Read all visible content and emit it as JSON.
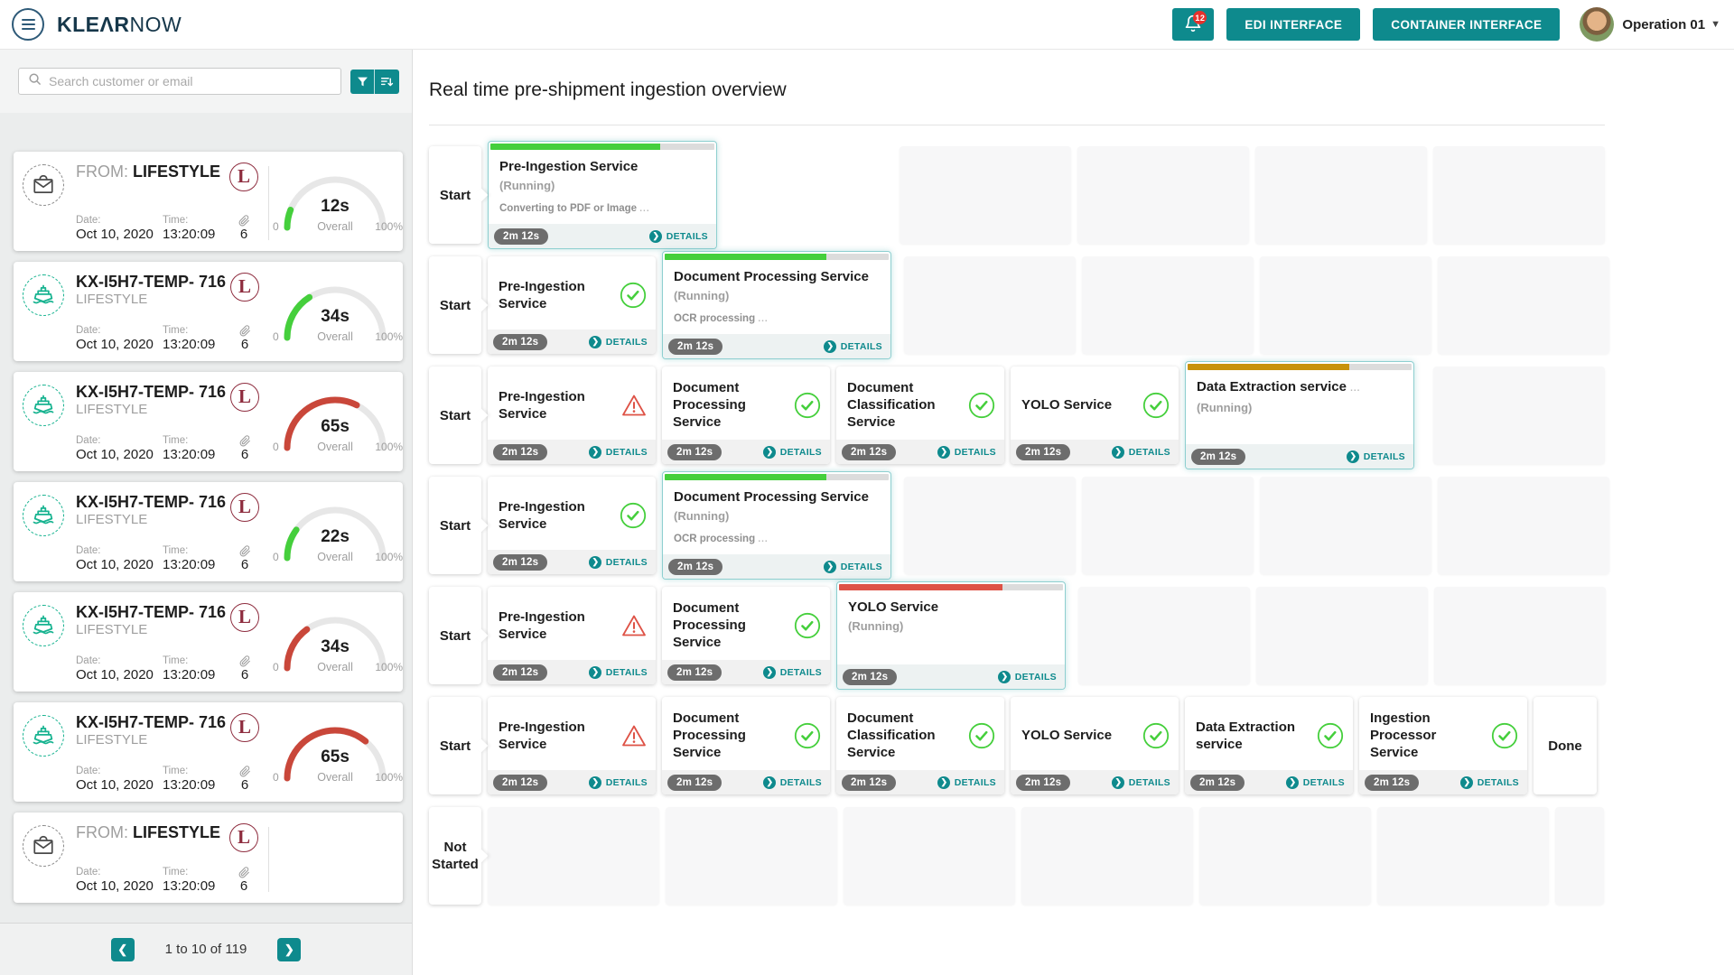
{
  "header": {
    "logo_bold": "KLEΛR",
    "logo_light": "NOW",
    "notification_count": "12",
    "edi_button": "EDI INTERFACE",
    "container_button": "CONTAINER INTERFACE",
    "user_name": "Operation 01"
  },
  "colors": {
    "teal_accent": "#0e8a8d",
    "success_green": "#45cf3c",
    "warning_red": "#de5246",
    "running_yellow": "#c8920b",
    "badge_maroon": "#8e2c3e"
  },
  "sidebar": {
    "search_placeholder": "Search customer or email",
    "pagination": {
      "prev": "❮",
      "label": "1 to 10 of 119",
      "next": "❯"
    },
    "shipments": [
      {
        "icon": "envelope",
        "title_prefix": "FROM:",
        "title": "LIFESTYLE",
        "subtitle": "",
        "badge": "L",
        "date_label": "Date:",
        "date": "Oct 10, 2020",
        "time_label": "Time:",
        "time": "13:20:09",
        "attachment_count": "6",
        "gauge": {
          "value": "12s",
          "label": "Overall",
          "min": "0",
          "max": "100%",
          "percent": 12,
          "color": "#45cf3c"
        }
      },
      {
        "icon": "ship",
        "title_prefix": "",
        "title": "KX-I5H7-TEMP- 716",
        "subtitle": "LIFESTYLE",
        "badge": "L",
        "date_label": "Date:",
        "date": "Oct 10, 2020",
        "time_label": "Time:",
        "time": "13:20:09",
        "attachment_count": "6",
        "gauge": {
          "value": "34s",
          "label": "Overall",
          "min": "0",
          "max": "100%",
          "percent": 32,
          "color": "#45cf3c"
        }
      },
      {
        "icon": "ship",
        "title_prefix": "",
        "title": "KX-I5H7-TEMP- 716",
        "subtitle": "LIFESTYLE",
        "badge": "L",
        "date_label": "Date:",
        "date": "Oct 10, 2020",
        "time_label": "Time:",
        "time": "13:20:09",
        "attachment_count": "6",
        "gauge": {
          "value": "65s",
          "label": "Overall",
          "min": "0",
          "max": "100%",
          "percent": 65,
          "color": "#c9473a"
        }
      },
      {
        "icon": "ship",
        "title_prefix": "",
        "title": "KX-I5H7-TEMP- 716",
        "subtitle": "LIFESTYLE",
        "badge": "L",
        "date_label": "Date:",
        "date": "Oct 10, 2020",
        "time_label": "Time:",
        "time": "13:20:09",
        "attachment_count": "6",
        "gauge": {
          "value": "22s",
          "label": "Overall",
          "min": "0",
          "max": "100%",
          "percent": 20,
          "color": "#45cf3c"
        }
      },
      {
        "icon": "ship",
        "title_prefix": "",
        "title": "KX-I5H7-TEMP- 716",
        "subtitle": "LIFESTYLE",
        "badge": "L",
        "date_label": "Date:",
        "date": "Oct 10, 2020",
        "time_label": "Time:",
        "time": "13:20:09",
        "attachment_count": "6",
        "gauge": {
          "value": "34s",
          "label": "Overall",
          "min": "0",
          "max": "100%",
          "percent": 30,
          "color": "#c9473a"
        }
      },
      {
        "icon": "ship",
        "title_prefix": "",
        "title": "KX-I5H7-TEMP- 716",
        "subtitle": "LIFESTYLE",
        "badge": "L",
        "date_label": "Date:",
        "date": "Oct 10, 2020",
        "time_label": "Time:",
        "time": "13:20:09",
        "attachment_count": "6",
        "gauge": {
          "value": "65s",
          "label": "Overall",
          "min": "0",
          "max": "100%",
          "percent": 72,
          "color": "#c9473a"
        }
      },
      {
        "icon": "envelope",
        "title_prefix": "FROM:",
        "title": "LIFESTYLE",
        "subtitle": "",
        "badge": "L",
        "date_label": "Date:",
        "date": "Oct 10, 2020",
        "time_label": "Time:",
        "time": "13:20:09",
        "attachment_count": "6",
        "gauge": null
      }
    ]
  },
  "main": {
    "title": "Real time pre-shipment ingestion overview",
    "rows": [
      {
        "start_label": "Start",
        "cards": [
          {
            "kind": "running",
            "title": "Pre-Ingestion Service",
            "status": "(Running)",
            "subtext": "Converting to PDF or Image",
            "sub_dots": "...",
            "progress_percent": 76,
            "progress_color": "#45cf3c",
            "duration": "2m 12s",
            "details_label": "DETAILS"
          }
        ],
        "empty_cells": 4,
        "empties_alignment": "right"
      },
      {
        "start_label": "Start",
        "cards": [
          {
            "kind": "ok",
            "title": "Pre-Ingestion Service",
            "duration": "2m 12s",
            "details_label": "DETAILS"
          },
          {
            "kind": "running",
            "title": "Document Processing Service",
            "status": "(Running)",
            "subtext": "OCR processing",
            "sub_dots": "...",
            "progress_percent": 72,
            "progress_color": "#45cf3c",
            "duration": "2m 12s",
            "details_label": "DETAILS"
          }
        ],
        "empty_cells": 4,
        "empties_alignment": "right"
      },
      {
        "start_label": "Start",
        "cards": [
          {
            "kind": "warn",
            "title": "Pre-Ingestion Service",
            "duration": "2m 12s",
            "details_label": "DETAILS"
          },
          {
            "kind": "ok",
            "title": "Document Processing Service",
            "duration": "2m 12s",
            "details_label": "DETAILS"
          },
          {
            "kind": "ok",
            "title": "Document Classification Service",
            "duration": "2m 12s",
            "details_label": "DETAILS"
          },
          {
            "kind": "ok",
            "title": "YOLO Service",
            "duration": "2m 12s",
            "details_label": "DETAILS"
          },
          {
            "kind": "running",
            "title": "Data Extraction service",
            "title_dots": "...",
            "status": "(Running)",
            "progress_percent": 72,
            "progress_color": "#c8920b",
            "duration": "2m 12s",
            "details_label": "DETAILS"
          }
        ],
        "empty_cells": 1,
        "empties_alignment": "right"
      },
      {
        "start_label": "Start",
        "cards": [
          {
            "kind": "ok",
            "title": "Pre-Ingestion Service",
            "duration": "2m 12s",
            "details_label": "DETAILS"
          },
          {
            "kind": "running",
            "title": "Document Processing Service",
            "status": "(Running)",
            "subtext": "OCR processing",
            "sub_dots": "...",
            "progress_percent": 72,
            "progress_color": "#45cf3c",
            "duration": "2m 12s",
            "details_label": "DETAILS"
          }
        ],
        "empty_cells": 4,
        "empties_alignment": "right"
      },
      {
        "start_label": "Start",
        "cards": [
          {
            "kind": "warn",
            "title": "Pre-Ingestion Service",
            "duration": "2m 12s",
            "details_label": "DETAILS"
          },
          {
            "kind": "ok",
            "title": "Document Processing Service",
            "duration": "2m 12s",
            "details_label": "DETAILS"
          },
          {
            "kind": "running",
            "title": "YOLO Service",
            "status": "(Running)",
            "progress_percent": 73,
            "progress_color": "#de5246",
            "duration": "2m 12s",
            "details_label": "DETAILS"
          }
        ],
        "empty_cells": 3,
        "empties_alignment": "right"
      },
      {
        "start_label": "Start",
        "cards": [
          {
            "kind": "warn",
            "title": "Pre-Ingestion Service",
            "duration": "2m 12s",
            "details_label": "DETAILS"
          },
          {
            "kind": "ok",
            "title": "Document Processing Service",
            "duration": "2m 12s",
            "details_label": "DETAILS"
          },
          {
            "kind": "ok",
            "title": "Document Classification Service",
            "duration": "2m 12s",
            "details_label": "DETAILS"
          },
          {
            "kind": "ok",
            "title": "YOLO Service",
            "duration": "2m 12s",
            "details_label": "DETAILS"
          },
          {
            "kind": "ok",
            "title": "Data Extraction service",
            "duration": "2m 12s",
            "details_label": "DETAILS"
          },
          {
            "kind": "ok",
            "title": "Ingestion Processor Service",
            "duration": "2m 12s",
            "details_label": "DETAILS"
          }
        ],
        "end_label": "Done",
        "empty_cells": 0,
        "empties_alignment": "right"
      },
      {
        "start_label": "Not Started",
        "cards": [],
        "empty_cells": 6,
        "narrow_empty": true,
        "empties_alignment": "left"
      }
    ]
  }
}
